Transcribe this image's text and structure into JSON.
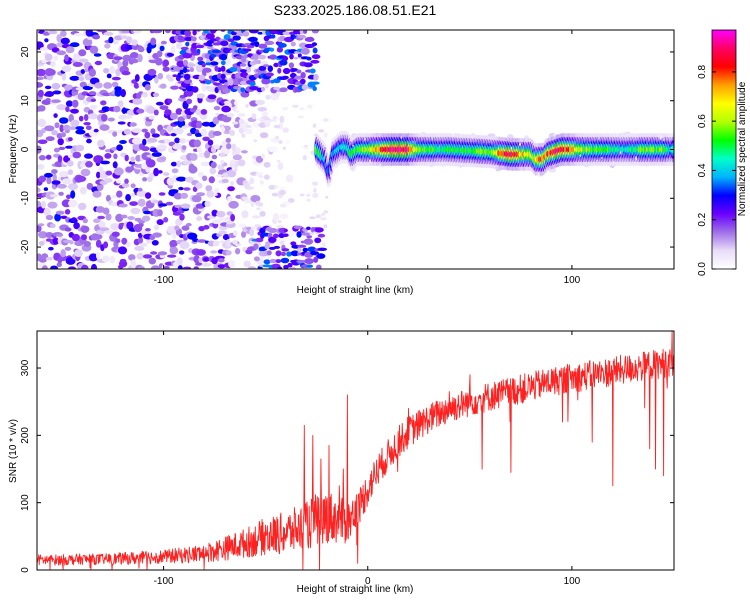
{
  "chart_data": [
    {
      "type": "heatmap",
      "title": "S233.2025.186.08.51.E21",
      "xlabel": "Height of straight line (km)",
      "ylabel": "Frequency (Hz)",
      "xlim": [
        -162,
        150
      ],
      "ylim": [
        -24.5,
        24.5
      ],
      "x_ticks": [
        -100,
        0,
        100
      ],
      "y_ticks": [
        -20,
        -10,
        0,
        10,
        20
      ],
      "colorbar": {
        "label": "Normalized spectral amplitude",
        "range": [
          0,
          0.97
        ],
        "ticks": [
          0.0,
          0.2,
          0.4,
          0.6,
          0.8
        ],
        "colormap": [
          "#ffffff",
          "#e8dcf8",
          "#a070e8",
          "#6a00ff",
          "#0000ff",
          "#00b4ff",
          "#00ffc8",
          "#00ff00",
          "#b4ff00",
          "#ffff00",
          "#ffa000",
          "#ff0000",
          "#ff0064",
          "#ff00ff"
        ]
      },
      "signal_band": {
        "x_start": -25,
        "x_end": 150,
        "center_frequency": [
          [
            -25,
            0
          ],
          [
            -21,
            -2
          ],
          [
            -19,
            -5
          ],
          [
            -17,
            -1
          ],
          [
            -13,
            0.5
          ],
          [
            -10,
            0.5
          ],
          [
            -8,
            -1
          ],
          [
            -5,
            0
          ],
          [
            0,
            0
          ],
          [
            20,
            0
          ],
          [
            40,
            0
          ],
          [
            60,
            -0.5
          ],
          [
            70,
            -1
          ],
          [
            80,
            -1
          ],
          [
            82,
            -2
          ],
          [
            86,
            -2
          ],
          [
            88,
            -1
          ],
          [
            95,
            0
          ],
          [
            110,
            0
          ],
          [
            130,
            0
          ],
          [
            150,
            0
          ]
        ],
        "peak_amplitude": [
          [
            -25,
            0.55
          ],
          [
            -19,
            0.35
          ],
          [
            -10,
            0.45
          ],
          [
            0,
            0.6
          ],
          [
            10,
            0.9
          ],
          [
            20,
            0.9
          ],
          [
            25,
            0.55
          ],
          [
            35,
            0.5
          ],
          [
            50,
            0.5
          ],
          [
            60,
            0.6
          ],
          [
            70,
            0.9
          ],
          [
            80,
            0.6
          ],
          [
            85,
            0.75
          ],
          [
            95,
            0.9
          ],
          [
            105,
            0.6
          ],
          [
            115,
            0.55
          ],
          [
            125,
            0.45
          ],
          [
            135,
            0.55
          ],
          [
            145,
            0.55
          ],
          [
            150,
            0.4
          ]
        ]
      },
      "noise_region": {
        "x_start": -162,
        "x_end": -75,
        "typical_amplitude": 0.15
      },
      "edge_blobs": [
        {
          "x_range": [
            -95,
            -25
          ],
          "frequency_range": [
            12,
            24.5
          ],
          "peak_amplitude": 0.3
        },
        {
          "x_range": [
            -55,
            -22
          ],
          "frequency_range": [
            -24.5,
            -16
          ],
          "peak_amplitude": 0.3
        }
      ]
    },
    {
      "type": "line",
      "xlabel": "Height of straight line (km)",
      "ylabel": "SNR (10 * v/v)",
      "xlim": [
        -162,
        150
      ],
      "ylim": [
        0,
        355
      ],
      "x_ticks": [
        -100,
        0,
        100
      ],
      "y_ticks": [
        0,
        100,
        200,
        300
      ],
      "color": "#ff2020",
      "series": [
        {
          "x": [
            -162,
            -150,
            -140,
            -130,
            -120,
            -110,
            -100,
            -90,
            -80,
            -70,
            -60,
            -50,
            -40,
            -30,
            -25,
            -20,
            -15,
            -10,
            -5,
            0,
            5,
            10,
            15,
            20,
            30,
            40,
            50,
            60,
            70,
            80,
            90,
            100,
            110,
            120,
            130,
            140,
            150
          ],
          "y": [
            15,
            15,
            16,
            16,
            17,
            18,
            20,
            22,
            25,
            32,
            40,
            50,
            55,
            65,
            75,
            80,
            75,
            70,
            90,
            120,
            150,
            170,
            190,
            205,
            225,
            240,
            250,
            258,
            265,
            272,
            280,
            285,
            290,
            295,
            300,
            305,
            310
          ],
          "noise": [
            8,
            8,
            8,
            8,
            9,
            10,
            10,
            12,
            14,
            18,
            22,
            28,
            32,
            36,
            40,
            40,
            36,
            32,
            28,
            26,
            24,
            24,
            24,
            24,
            22,
            22,
            22,
            22,
            22,
            22,
            22,
            22,
            22,
            22,
            22,
            22,
            22
          ],
          "spikes": [
            [
              -31,
              215
            ],
            [
              -27,
              200
            ],
            [
              -23,
              165
            ],
            [
              -19,
              185
            ],
            [
              -14,
              125
            ],
            [
              -12,
              150
            ],
            [
              -10,
              260
            ],
            [
              -7,
              75
            ],
            [
              -5,
              10
            ],
            [
              20,
              240
            ],
            [
              40,
              265
            ],
            [
              50,
              290
            ],
            [
              56,
              150
            ],
            [
              70,
              145
            ],
            [
              110,
              190
            ],
            [
              120,
              125
            ],
            [
              138,
              180
            ],
            [
              141,
              150
            ],
            [
              145,
              140
            ],
            [
              149,
              355
            ]
          ]
        }
      ]
    }
  ]
}
